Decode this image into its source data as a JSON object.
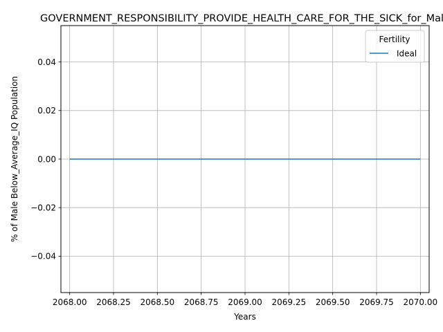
{
  "chart_data": {
    "type": "line",
    "title": "GOVERNMENT_RESPONSIBILITY_PROVIDE_HEALTH_CARE_FOR_THE_SICK_for_Male",
    "xlabel": "Years",
    "ylabel": "% of Male Below_Average_IQ Population",
    "xlim": [
      2067.95,
      2070.05
    ],
    "ylim": [
      -0.055,
      0.055
    ],
    "xticks": [
      "2068.00",
      "2068.25",
      "2068.50",
      "2068.75",
      "2069.00",
      "2069.25",
      "2069.50",
      "2069.75",
      "2070.00"
    ],
    "xtick_values": [
      2068.0,
      2068.25,
      2068.5,
      2068.75,
      2069.0,
      2069.25,
      2069.5,
      2069.75,
      2070.0
    ],
    "yticks": [
      "0.04",
      "0.02",
      "0.00",
      "−0.02",
      "−0.04"
    ],
    "ytick_values": [
      0.04,
      0.02,
      0.0,
      -0.02,
      -0.04
    ],
    "grid": true,
    "legend": {
      "title": "Fertility",
      "placement": "top-right"
    },
    "series": [
      {
        "name": "Ideal",
        "color": "#1f77b4",
        "x": [
          2068.0,
          2068.25,
          2068.5,
          2068.75,
          2069.0,
          2069.25,
          2069.5,
          2069.75,
          2070.0
        ],
        "y": [
          0,
          0,
          0,
          0,
          0,
          0,
          0,
          0,
          0
        ]
      }
    ]
  }
}
